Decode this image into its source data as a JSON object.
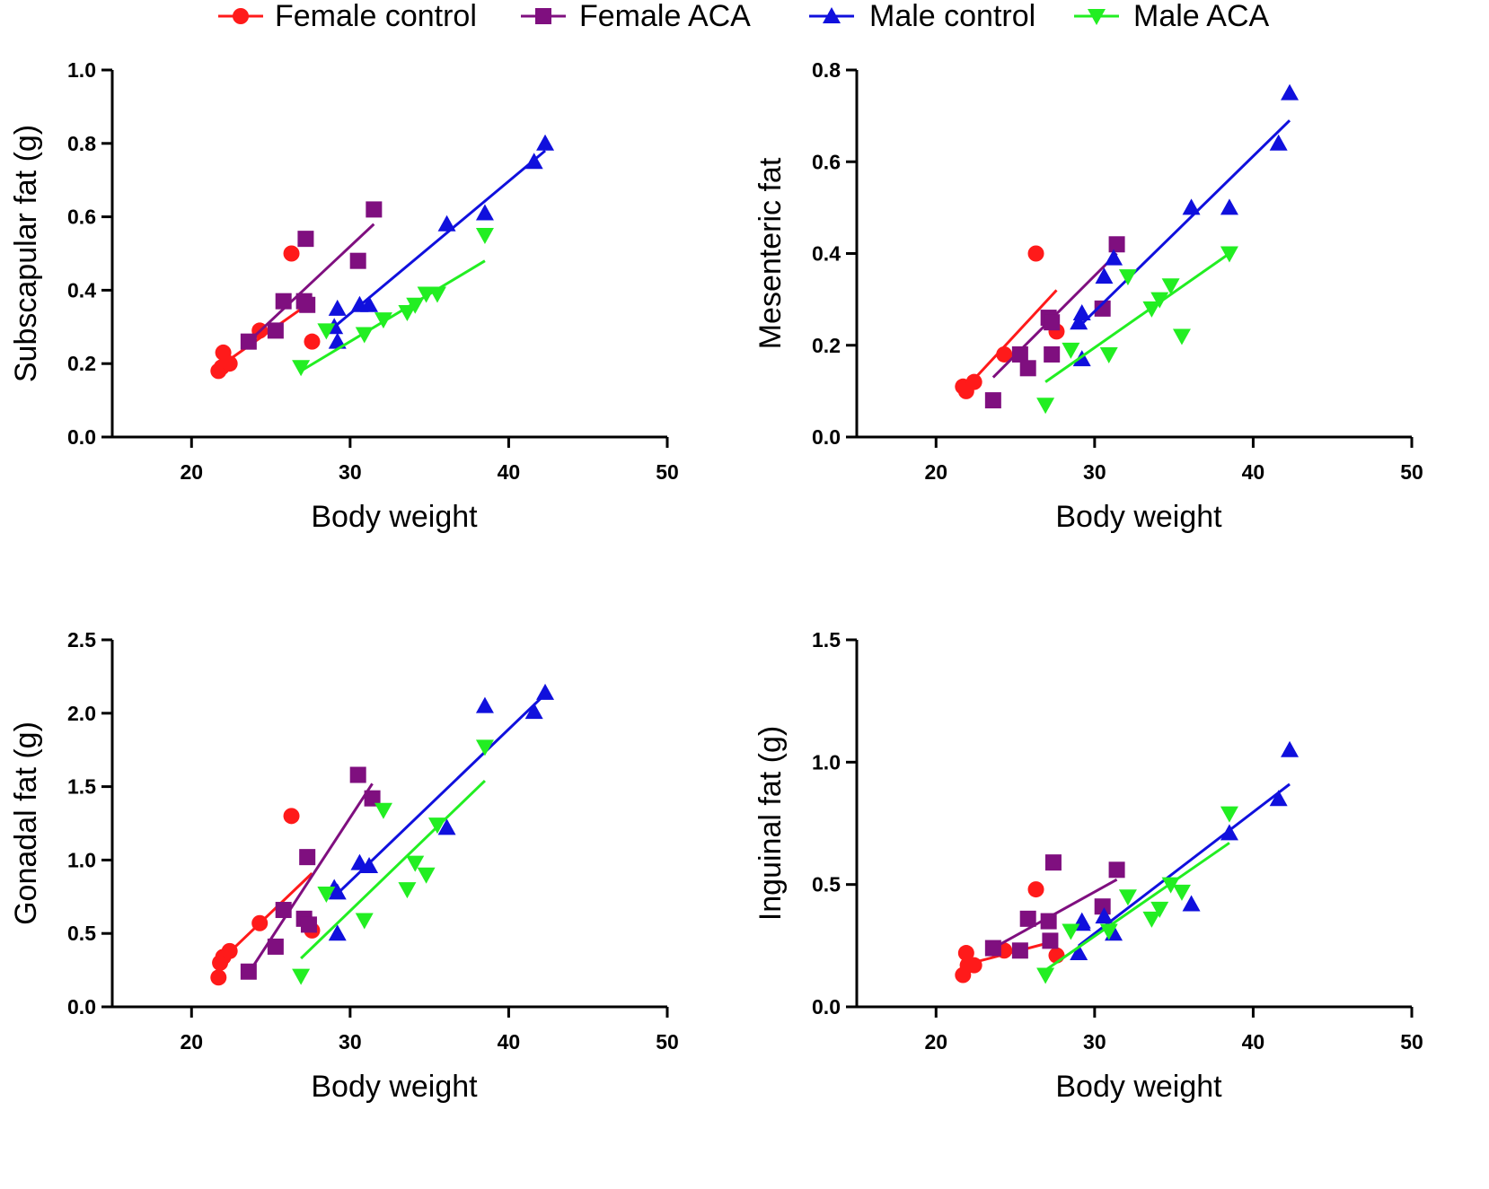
{
  "legend": [
    {
      "name": "Female control",
      "color": "#ff1a1a",
      "marker": "circle"
    },
    {
      "name": "Female ACA",
      "color": "#7f0f7f",
      "marker": "square"
    },
    {
      "name": "Male control",
      "color": "#1010dd",
      "marker": "triangle-up"
    },
    {
      "name": "Male ACA",
      "color": "#22ee22",
      "marker": "triangle-down"
    }
  ],
  "chart_data": [
    {
      "type": "scatter",
      "xlabel": "Body weight",
      "ylabel": "Subscapular fat (g)",
      "xlim": [
        15,
        50
      ],
      "ylim": [
        0,
        1.0
      ],
      "xticks": [
        "20",
        "30",
        "40",
        "50"
      ],
      "yticks": [
        "0.0",
        "0.2",
        "0.4",
        "0.6",
        "0.8",
        "1.0"
      ],
      "series": [
        {
          "name": "Female control",
          "points": [
            [
              21.7,
              0.18
            ],
            [
              21.9,
              0.19
            ],
            [
              22.0,
              0.23
            ],
            [
              22.4,
              0.2
            ],
            [
              24.3,
              0.29
            ],
            [
              26.3,
              0.5
            ],
            [
              27.6,
              0.26
            ]
          ],
          "fit": [
            [
              21.7,
              0.19
            ],
            [
              27.6,
              0.37
            ]
          ]
        },
        {
          "name": "Female ACA",
          "points": [
            [
              23.6,
              0.26
            ],
            [
              25.3,
              0.29
            ],
            [
              25.8,
              0.37
            ],
            [
              27.1,
              0.37
            ],
            [
              27.2,
              0.54
            ],
            [
              27.3,
              0.36
            ],
            [
              30.5,
              0.48
            ],
            [
              31.5,
              0.62
            ]
          ],
          "fit": [
            [
              23.6,
              0.26
            ],
            [
              31.5,
              0.58
            ]
          ]
        },
        {
          "name": "Male control",
          "points": [
            [
              29.0,
              0.3
            ],
            [
              29.2,
              0.26
            ],
            [
              29.2,
              0.35
            ],
            [
              30.6,
              0.36
            ],
            [
              31.2,
              0.36
            ],
            [
              36.1,
              0.58
            ],
            [
              38.5,
              0.61
            ],
            [
              41.6,
              0.75
            ],
            [
              42.3,
              0.8
            ]
          ],
          "fit": [
            [
              29.0,
              0.3
            ],
            [
              42.3,
              0.78
            ]
          ]
        },
        {
          "name": "Male ACA",
          "points": [
            [
              26.9,
              0.19
            ],
            [
              28.5,
              0.29
            ],
            [
              30.9,
              0.28
            ],
            [
              32.1,
              0.32
            ],
            [
              33.6,
              0.34
            ],
            [
              34.1,
              0.36
            ],
            [
              34.8,
              0.39
            ],
            [
              35.5,
              0.39
            ],
            [
              38.5,
              0.55
            ]
          ],
          "fit": [
            [
              26.9,
              0.18
            ],
            [
              38.5,
              0.48
            ]
          ]
        }
      ]
    },
    {
      "type": "scatter",
      "xlabel": "Body weight",
      "ylabel": "Mesenteric fat",
      "xlim": [
        15,
        50
      ],
      "ylim": [
        0,
        0.8
      ],
      "xticks": [
        "20",
        "30",
        "40",
        "50"
      ],
      "yticks": [
        "0.0",
        "0.2",
        "0.4",
        "0.6",
        "0.8"
      ],
      "series": [
        {
          "name": "Female control",
          "points": [
            [
              21.7,
              0.11
            ],
            [
              21.9,
              0.1
            ],
            [
              22.4,
              0.12
            ],
            [
              24.3,
              0.18
            ],
            [
              26.3,
              0.4
            ],
            [
              27.6,
              0.23
            ]
          ],
          "fit": [
            [
              21.7,
              0.1
            ],
            [
              27.6,
              0.32
            ]
          ]
        },
        {
          "name": "Female ACA",
          "points": [
            [
              23.6,
              0.08
            ],
            [
              25.3,
              0.18
            ],
            [
              25.8,
              0.15
            ],
            [
              27.1,
              0.26
            ],
            [
              27.3,
              0.25
            ],
            [
              27.3,
              0.18
            ],
            [
              30.5,
              0.28
            ],
            [
              31.4,
              0.42
            ]
          ],
          "fit": [
            [
              23.6,
              0.13
            ],
            [
              31.4,
              0.4
            ]
          ]
        },
        {
          "name": "Male control",
          "points": [
            [
              29.0,
              0.25
            ],
            [
              29.2,
              0.27
            ],
            [
              29.2,
              0.17
            ],
            [
              30.6,
              0.35
            ],
            [
              31.2,
              0.39
            ],
            [
              36.1,
              0.5
            ],
            [
              38.5,
              0.5
            ],
            [
              41.6,
              0.64
            ],
            [
              42.3,
              0.75
            ]
          ],
          "fit": [
            [
              29.0,
              0.24
            ],
            [
              42.3,
              0.69
            ]
          ]
        },
        {
          "name": "Male ACA",
          "points": [
            [
              26.9,
              0.07
            ],
            [
              28.5,
              0.19
            ],
            [
              30.9,
              0.18
            ],
            [
              32.1,
              0.35
            ],
            [
              33.6,
              0.28
            ],
            [
              34.1,
              0.3
            ],
            [
              34.8,
              0.33
            ],
            [
              35.5,
              0.22
            ],
            [
              38.5,
              0.4
            ]
          ],
          "fit": [
            [
              26.9,
              0.12
            ],
            [
              38.5,
              0.4
            ]
          ]
        }
      ]
    },
    {
      "type": "scatter",
      "xlabel": "Body weight",
      "ylabel": "Gonadal fat (g)",
      "xlim": [
        15,
        50
      ],
      "ylim": [
        0,
        2.5
      ],
      "xticks": [
        "20",
        "30",
        "40",
        "50"
      ],
      "yticks": [
        "0.0",
        "0.5",
        "1.0",
        "1.5",
        "2.0",
        "2.5"
      ],
      "series": [
        {
          "name": "Female control",
          "points": [
            [
              21.7,
              0.2
            ],
            [
              21.8,
              0.3
            ],
            [
              22.0,
              0.34
            ],
            [
              22.4,
              0.38
            ],
            [
              24.3,
              0.57
            ],
            [
              26.3,
              1.3
            ],
            [
              27.6,
              0.52
            ]
          ],
          "fit": [
            [
              21.7,
              0.3
            ],
            [
              27.6,
              0.91
            ]
          ]
        },
        {
          "name": "Female ACA",
          "points": [
            [
              23.6,
              0.24
            ],
            [
              25.3,
              0.41
            ],
            [
              25.8,
              0.66
            ],
            [
              27.1,
              0.6
            ],
            [
              27.3,
              1.02
            ],
            [
              27.4,
              0.56
            ],
            [
              30.5,
              1.58
            ],
            [
              31.4,
              1.42
            ]
          ],
          "fit": [
            [
              23.6,
              0.23
            ],
            [
              31.4,
              1.52
            ]
          ]
        },
        {
          "name": "Male control",
          "points": [
            [
              29.0,
              0.81
            ],
            [
              29.2,
              0.78
            ],
            [
              29.2,
              0.5
            ],
            [
              30.6,
              0.98
            ],
            [
              31.2,
              0.96
            ],
            [
              36.1,
              1.22
            ],
            [
              38.5,
              2.05
            ],
            [
              41.6,
              2.01
            ],
            [
              42.3,
              2.14
            ]
          ],
          "fit": [
            [
              29.0,
              0.75
            ],
            [
              42.3,
              2.13
            ]
          ]
        },
        {
          "name": "Male ACA",
          "points": [
            [
              26.9,
              0.21
            ],
            [
              28.5,
              0.77
            ],
            [
              30.9,
              0.59
            ],
            [
              32.1,
              1.34
            ],
            [
              33.6,
              0.8
            ],
            [
              34.1,
              0.98
            ],
            [
              34.8,
              0.9
            ],
            [
              35.5,
              1.24
            ],
            [
              38.5,
              1.77
            ]
          ],
          "fit": [
            [
              26.9,
              0.33
            ],
            [
              38.5,
              1.54
            ]
          ]
        }
      ]
    },
    {
      "type": "scatter",
      "xlabel": "Body weight",
      "ylabel": "Inguinal fat (g)",
      "xlim": [
        15,
        50
      ],
      "ylim": [
        0,
        1.5
      ],
      "xticks": [
        "20",
        "30",
        "40",
        "50"
      ],
      "yticks": [
        "0.0",
        "0.5",
        "1.0",
        "1.5"
      ],
      "series": [
        {
          "name": "Female control",
          "points": [
            [
              21.7,
              0.13
            ],
            [
              21.9,
              0.22
            ],
            [
              22.0,
              0.17
            ],
            [
              22.4,
              0.17
            ],
            [
              24.3,
              0.23
            ],
            [
              26.3,
              0.48
            ],
            [
              27.6,
              0.21
            ]
          ],
          "fit": [
            [
              21.7,
              0.17
            ],
            [
              27.6,
              0.27
            ]
          ]
        },
        {
          "name": "Female ACA",
          "points": [
            [
              23.6,
              0.24
            ],
            [
              25.3,
              0.23
            ],
            [
              25.8,
              0.36
            ],
            [
              27.1,
              0.35
            ],
            [
              27.2,
              0.27
            ],
            [
              27.4,
              0.59
            ],
            [
              30.5,
              0.41
            ],
            [
              31.4,
              0.56
            ]
          ],
          "fit": [
            [
              23.6,
              0.24
            ],
            [
              31.4,
              0.52
            ]
          ]
        },
        {
          "name": "Male control",
          "points": [
            [
              29.0,
              0.22
            ],
            [
              29.2,
              0.34
            ],
            [
              29.2,
              0.35
            ],
            [
              30.6,
              0.37
            ],
            [
              31.2,
              0.3
            ],
            [
              36.1,
              0.42
            ],
            [
              38.5,
              0.71
            ],
            [
              41.6,
              0.85
            ],
            [
              42.3,
              1.05
            ]
          ],
          "fit": [
            [
              29.0,
              0.25
            ],
            [
              42.3,
              0.91
            ]
          ]
        },
        {
          "name": "Male ACA",
          "points": [
            [
              26.9,
              0.13
            ],
            [
              28.5,
              0.31
            ],
            [
              30.9,
              0.31
            ],
            [
              32.1,
              0.45
            ],
            [
              33.6,
              0.36
            ],
            [
              34.1,
              0.4
            ],
            [
              34.8,
              0.5
            ],
            [
              35.5,
              0.47
            ],
            [
              38.5,
              0.79
            ]
          ],
          "fit": [
            [
              26.9,
              0.15
            ],
            [
              38.5,
              0.67
            ]
          ]
        }
      ]
    }
  ]
}
